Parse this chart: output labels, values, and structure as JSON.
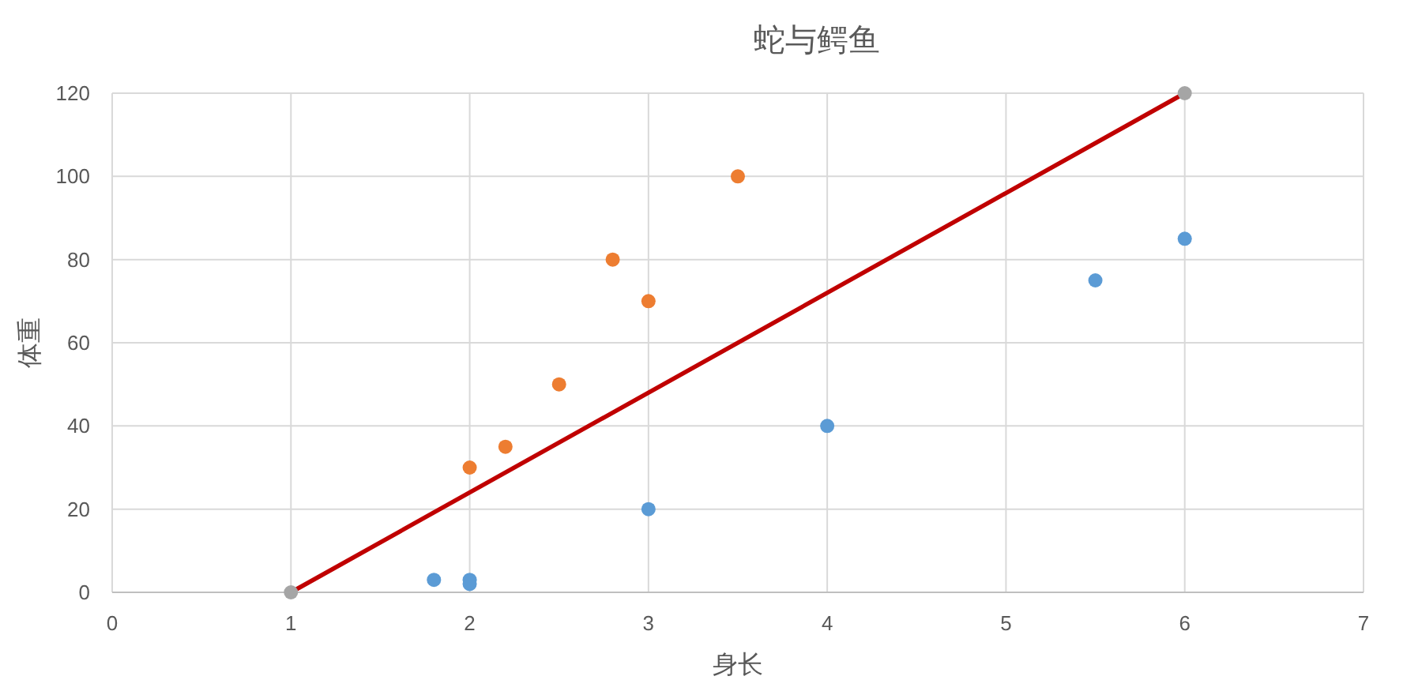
{
  "chart_data": {
    "type": "scatter",
    "title": "蛇与鳄鱼",
    "xlabel": "身长",
    "ylabel": "体重",
    "xlim": [
      0,
      7
    ],
    "xticks": [
      0,
      1,
      2,
      3,
      4,
      5,
      6,
      7
    ],
    "ylim": [
      0,
      120
    ],
    "yticks": [
      0,
      20,
      40,
      60,
      80,
      100,
      120
    ],
    "grid": true,
    "marker": "circle",
    "series": [
      {
        "color": "#5b9bd5",
        "x": [
          1.8,
          2,
          2,
          3,
          4,
          5.5,
          6
        ],
        "values": [
          3,
          3,
          2,
          20,
          40,
          75,
          85
        ]
      },
      {
        "color": "#ed7d31",
        "x": [
          2,
          2.2,
          2.5,
          2.8,
          3,
          3.5
        ],
        "values": [
          30,
          35,
          50,
          80,
          70,
          100
        ]
      },
      {
        "type": "line",
        "color": "#c00000",
        "marker": "none",
        "line_style": "solid",
        "x": [
          1,
          6
        ],
        "values": [
          0,
          120
        ]
      },
      {
        "color": "#a5a5a5",
        "x": [
          1,
          6
        ],
        "values": [
          0,
          120
        ]
      }
    ]
  }
}
